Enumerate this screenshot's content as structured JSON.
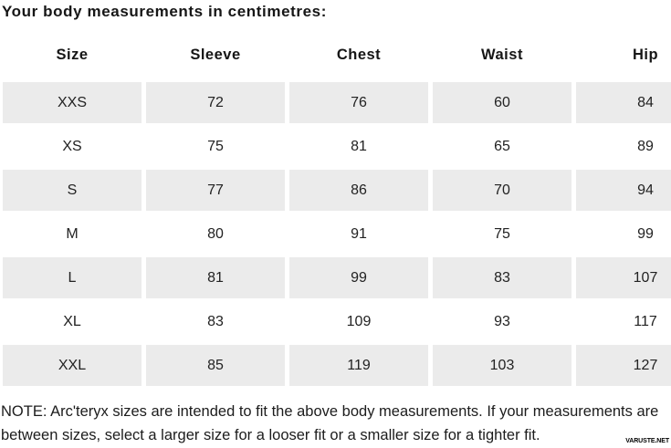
{
  "title": "Your body measurements in centimetres:",
  "table": {
    "columns": [
      "Size",
      "Sleeve",
      "Chest",
      "Waist",
      "Hip"
    ],
    "rows": [
      [
        "XXS",
        "72",
        "76",
        "60",
        "84"
      ],
      [
        "XS",
        "75",
        "81",
        "65",
        "89"
      ],
      [
        "S",
        "77",
        "86",
        "70",
        "94"
      ],
      [
        "M",
        "80",
        "91",
        "75",
        "99"
      ],
      [
        "L",
        "81",
        "99",
        "83",
        "107"
      ],
      [
        "XL",
        "83",
        "109",
        "93",
        "117"
      ],
      [
        "XXL",
        "85",
        "119",
        "103",
        "127"
      ]
    ]
  },
  "note": "NOTE: Arc'teryx sizes are intended to fit the above body measurements. If your measurements are between sizes, select a larger size for a looser fit or a smaller size for a tighter fit.",
  "watermark": "VARUSTE.NET",
  "colors": {
    "row_alt_background": "#EBEBEB",
    "text": "#1D1D1D",
    "background": "#FFFFFF"
  }
}
